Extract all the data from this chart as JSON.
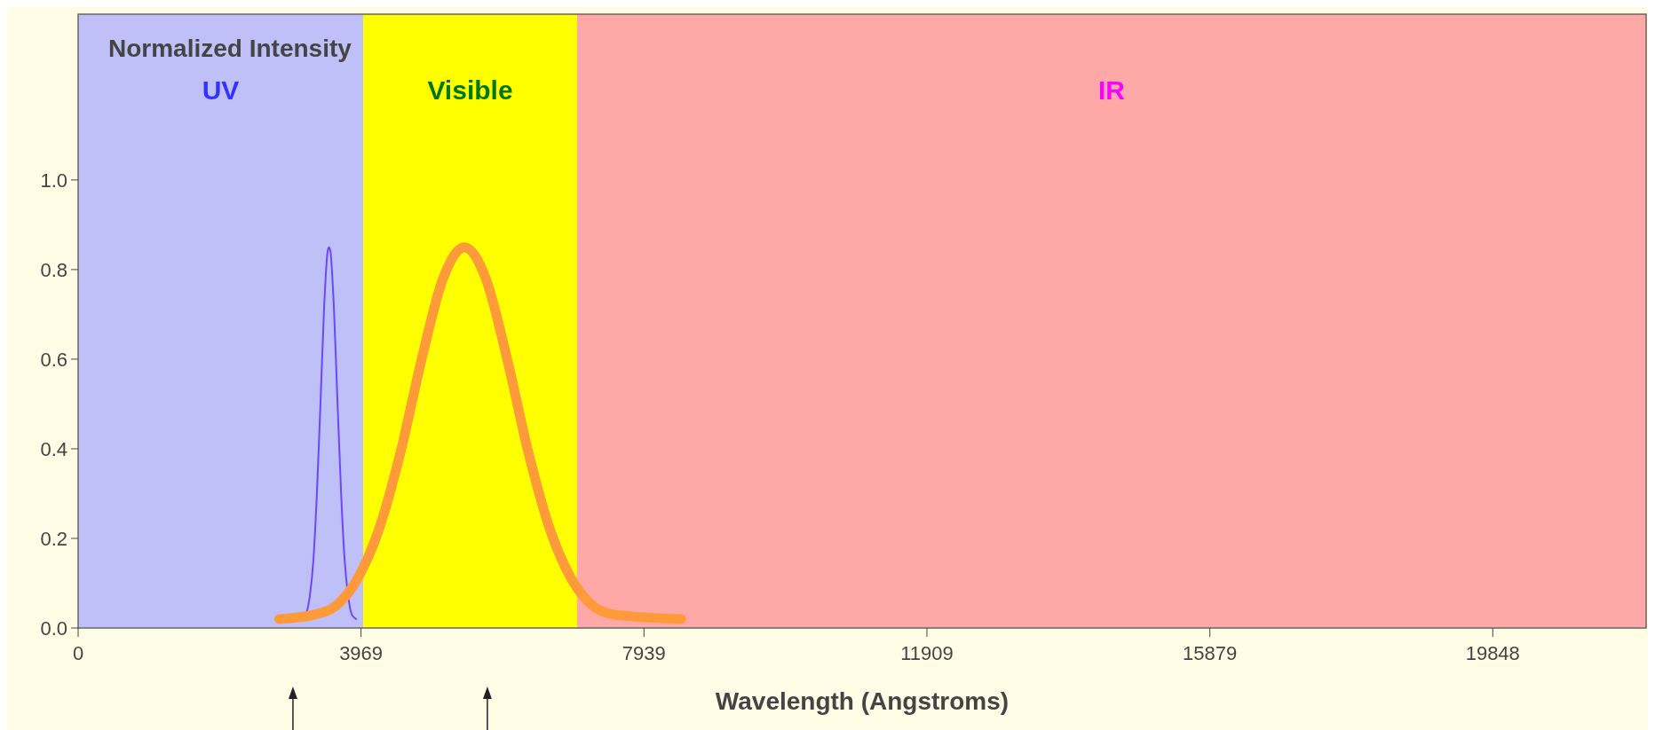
{
  "chart_data": {
    "type": "line",
    "xlabel": "Wavelength (Angstroms)",
    "ylabel": "Normalized Intensity",
    "xlim": [
      0,
      22000
    ],
    "ylim": [
      0,
      1.37
    ],
    "xticks": [
      0,
      3969,
      7939,
      11909,
      15879,
      19848
    ],
    "yticks": [
      {
        "value": 0,
        "label": "0.0"
      },
      {
        "value": 0.2,
        "label": "0.2"
      },
      {
        "value": 0.4,
        "label": "0.4"
      },
      {
        "value": 0.6,
        "label": "0.6"
      },
      {
        "value": 0.8,
        "label": "0.8"
      },
      {
        "value": 1,
        "label": "1.0"
      }
    ],
    "bands": [
      {
        "axis": "x",
        "from": 0,
        "to": 4000,
        "label": "UV",
        "color": "#c0c0f8"
      },
      {
        "axis": "x",
        "from": 4000,
        "to": 7000,
        "label": "Visible",
        "color": "#ffff00"
      },
      {
        "axis": "x",
        "from": 7000,
        "to": 22000,
        "label": "IR",
        "color": "#ffa8a8"
      }
    ],
    "series": [
      {
        "color": "#6a48ff",
        "x": [
          3200,
          3250,
          3300,
          3350,
          3400,
          3450,
          3500,
          3520,
          3540,
          3590,
          3640,
          3690,
          3740,
          3790,
          3840,
          3900
        ],
        "values": [
          0.03,
          0.07,
          0.15,
          0.3,
          0.5,
          0.71,
          0.84,
          0.85,
          0.84,
          0.71,
          0.5,
          0.3,
          0.15,
          0.07,
          0.03,
          0.02
        ]
      },
      {
        "color": "#ff9a3a",
        "x": [
          2820,
          3320,
          3620,
          3920,
          4220,
          4520,
          4820,
          5120,
          5420,
          5720,
          6020,
          6320,
          6620,
          6920,
          7220,
          7520,
          8460
        ],
        "values": [
          0.02,
          0.03,
          0.05,
          0.11,
          0.22,
          0.39,
          0.6,
          0.78,
          0.85,
          0.78,
          0.6,
          0.39,
          0.22,
          0.11,
          0.05,
          0.03,
          0.02
        ]
      }
    ],
    "grid": false
  }
}
